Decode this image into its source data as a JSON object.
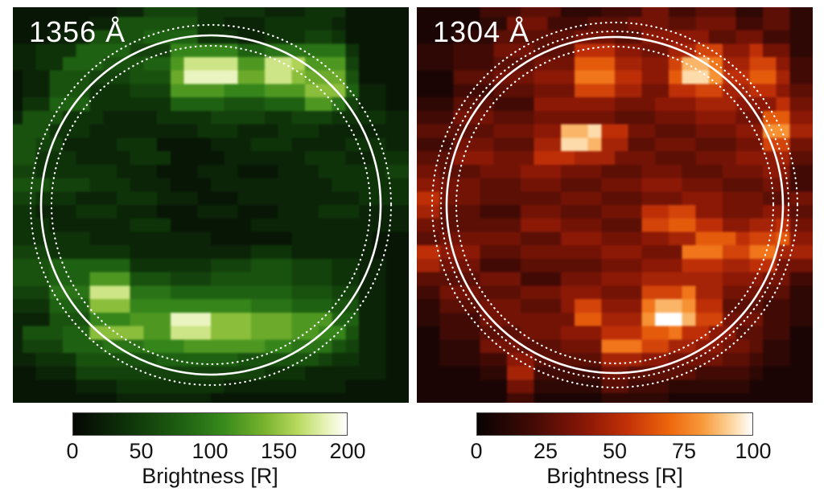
{
  "figure": {
    "background": "#ffffff",
    "overlay_stroke": "#ffffff"
  },
  "chart_data": [
    {
      "type": "heatmap",
      "title": "1356 Å",
      "colorbar": {
        "label": "Brightness [R]",
        "ticks": [
          "0",
          "50",
          "100",
          "150",
          "200"
        ],
        "min": 0,
        "max": 200
      },
      "colormap_stops": [
        [
          0,
          "#050704"
        ],
        [
          0.2,
          "#0e3309"
        ],
        [
          0.4,
          "#1f6112"
        ],
        [
          0.55,
          "#388a1c"
        ],
        [
          0.7,
          "#79b32e"
        ],
        [
          0.82,
          "#b8d95e"
        ],
        [
          0.92,
          "#e6f2b4"
        ],
        [
          1,
          "#ffffff"
        ]
      ],
      "grid_size": 30,
      "value_encoding": "hex digit 0-15 maps linearly to 0-200 R",
      "grid_hex_rows": [
        "111111112244443333322233311111",
        "111111225555553322233333211111",
        "111222555566663332233344311111",
        "223336666444888886677777731111",
        "2233666555669dddd99ddc99941111",
        "122555444555aeeeeaaddbaaa51111",
        "1225553334449999888999bbb62211",
        "133666333333666655566699742211",
        "255533322223333444433444333322",
        "555333222222223332223332222222",
        "554422223331111222333222233322",
        "553332222333111122222233322333",
        "443333332221112221112223333344",
        "555444333222111222222222333333",
        "443332223332221112222222223333",
        "332223332221112221112223332222",
        "333222222333111111222222222222",
        "333333222222222111111222222111",
        "444333333222222222333222222111",
        "555666666333333444555444332211",
        "555666999555444555555444332211",
        "444777ddd777666666666555442211",
        "333666bbb888888888777666552211",
        "222555888999eeebbbaaa999662211",
        "255566bbbb99dddbbbaaa998852211",
        "244466677788899999988777542211",
        "223335555556666665555554332211",
        "112224444444444444433322222211",
        "111112223333333322222222211111",
        "111111112222222111111111111111"
      ],
      "overlay": {
        "solid_circle_r": 211,
        "dotted_circle_r": [
          224,
          198
        ],
        "stroke": "#ffffff"
      }
    },
    {
      "type": "heatmap",
      "title": "1304 Å",
      "colorbar": {
        "label": "Brightness [R]",
        "ticks": [
          "0",
          "25",
          "50",
          "75",
          "100"
        ],
        "min": 0,
        "max": 100
      },
      "colormap_stops": [
        [
          0,
          "#070303"
        ],
        [
          0.2,
          "#420a05"
        ],
        [
          0.4,
          "#8c1806"
        ],
        [
          0.55,
          "#c43208"
        ],
        [
          0.7,
          "#ee670d"
        ],
        [
          0.82,
          "#f89a3c"
        ],
        [
          0.92,
          "#fcd49a"
        ],
        [
          1,
          "#ffffff"
        ]
      ],
      "grid_size": 30,
      "value_encoding": "hex digit 0-15 maps linearly to 0-100 R",
      "grid_hex_rows": [
        "111113334442223335533444224422",
        "111112255533344455544555334422",
        "111222444444555446666644553322",
        "222333555444888665577996685522",
        "222333444555aaa77669ddb7799633",
        "111444555666bbb8866aeec88aa733",
        "111333444555999775588997788644",
        "222444333666666555666777666855",
        "33355544455555544455566655aa66",
        "44444455566dde885544455566cc77",
        "33355544477eed7744555444559955",
        "444666555888777555444555666744",
        "554445556665554445554445556633",
        "665554445554445556665554445533",
        "885554444445554445556665554455",
        "774443335554445558899665556644",
        "5544444466655544499aa886677855",
        "445555554446665556677aaa899a66",
        "88666444555555666555bbb99bb777",
        "775553334444445556668887788555",
        "444445553335556667777776665533",
        "33555444555666555999b775554422",
        "22444555444699666bddc884443322",
        "223335555555aa777cffd995553322",
        "11333444555666888aab8866443311",
        "11222555444555bbb9977665542211",
        "112223366444447776655554432211",
        "111112277333335544444333321111",
        "111111155222224433322222211111",
        "111111133111112222211111111111"
      ],
      "overlay": {
        "solid_circle_r": 209,
        "dotted_circle_r": [
          227,
          216,
          197
        ],
        "stroke": "#ffffff"
      }
    }
  ]
}
